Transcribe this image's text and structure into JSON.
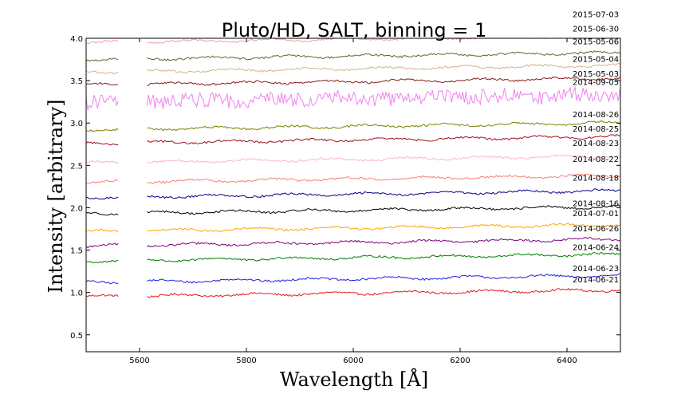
{
  "chart_data": {
    "type": "line",
    "title": "Pluto/HD, SALT, binning = 1",
    "xlabel": "Wavelength [Å]",
    "ylabel": "Intensity [arbitrary]",
    "xlim": [
      5500,
      6500
    ],
    "ylim": [
      0.3,
      4.0
    ],
    "x_ticks": [
      5600,
      5800,
      6000,
      6200,
      6400
    ],
    "y_ticks": [
      0.5,
      1.0,
      1.5,
      2.0,
      2.5,
      3.0,
      3.5,
      4.0
    ],
    "grid": false,
    "legend": "right-side date labels",
    "series": [
      {
        "name": "2014-06-21",
        "color": "#e31a1c",
        "offset": 0.95,
        "label_y": 1.12
      },
      {
        "name": "2014-06-23",
        "color": "#1f1fe0",
        "offset": 1.12,
        "label_y": 1.25
      },
      {
        "name": "2014-06-24",
        "color": "#008000",
        "offset": 1.37,
        "label_y": 1.5
      },
      {
        "name": "2014-06-26",
        "color": "#800080",
        "offset": 1.55,
        "label_y": 1.72
      },
      {
        "name": "2014-07-01",
        "color": "#ffa500",
        "offset": 1.72,
        "label_y": 1.9
      },
      {
        "name": "2014-08-16",
        "color": "#000000",
        "offset": 1.93,
        "label_y": 2.02
      },
      {
        "name": "2014-08-18",
        "color": "#00008b",
        "offset": 2.12,
        "label_y": 2.32
      },
      {
        "name": "2014-08-22",
        "color": "#fa8072",
        "offset": 2.3,
        "label_y": 2.54
      },
      {
        "name": "2014-08-23",
        "color": "#ffb6c1",
        "offset": 2.53,
        "label_y": 2.73
      },
      {
        "name": "2014-08-25",
        "color": "#a01020",
        "offset": 2.76,
        "label_y": 2.9
      },
      {
        "name": "2014-08-26",
        "color": "#808000",
        "offset": 2.92,
        "label_y": 3.07
      },
      {
        "name": "2014-09-05",
        "color": "#ee82ee",
        "offset": 3.25,
        "label_y": 3.45
      },
      {
        "name": "2015-05-03",
        "color": "#8b1a1a",
        "offset": 3.45,
        "label_y": 3.55
      },
      {
        "name": "2015-05-04",
        "color": "#d2b48c",
        "offset": 3.6,
        "label_y": 3.72
      },
      {
        "name": "2015-05-06",
        "color": "#556b2f",
        "offset": 3.75,
        "label_y": 3.93
      },
      {
        "name": "2015-06-30",
        "color": "#f4a0a0",
        "offset": 3.95,
        "label_y": 4.08
      },
      {
        "name": "2015-07-03",
        "color": "#2e8b57",
        "offset": 4.05,
        "label_y": 4.25
      }
    ]
  }
}
